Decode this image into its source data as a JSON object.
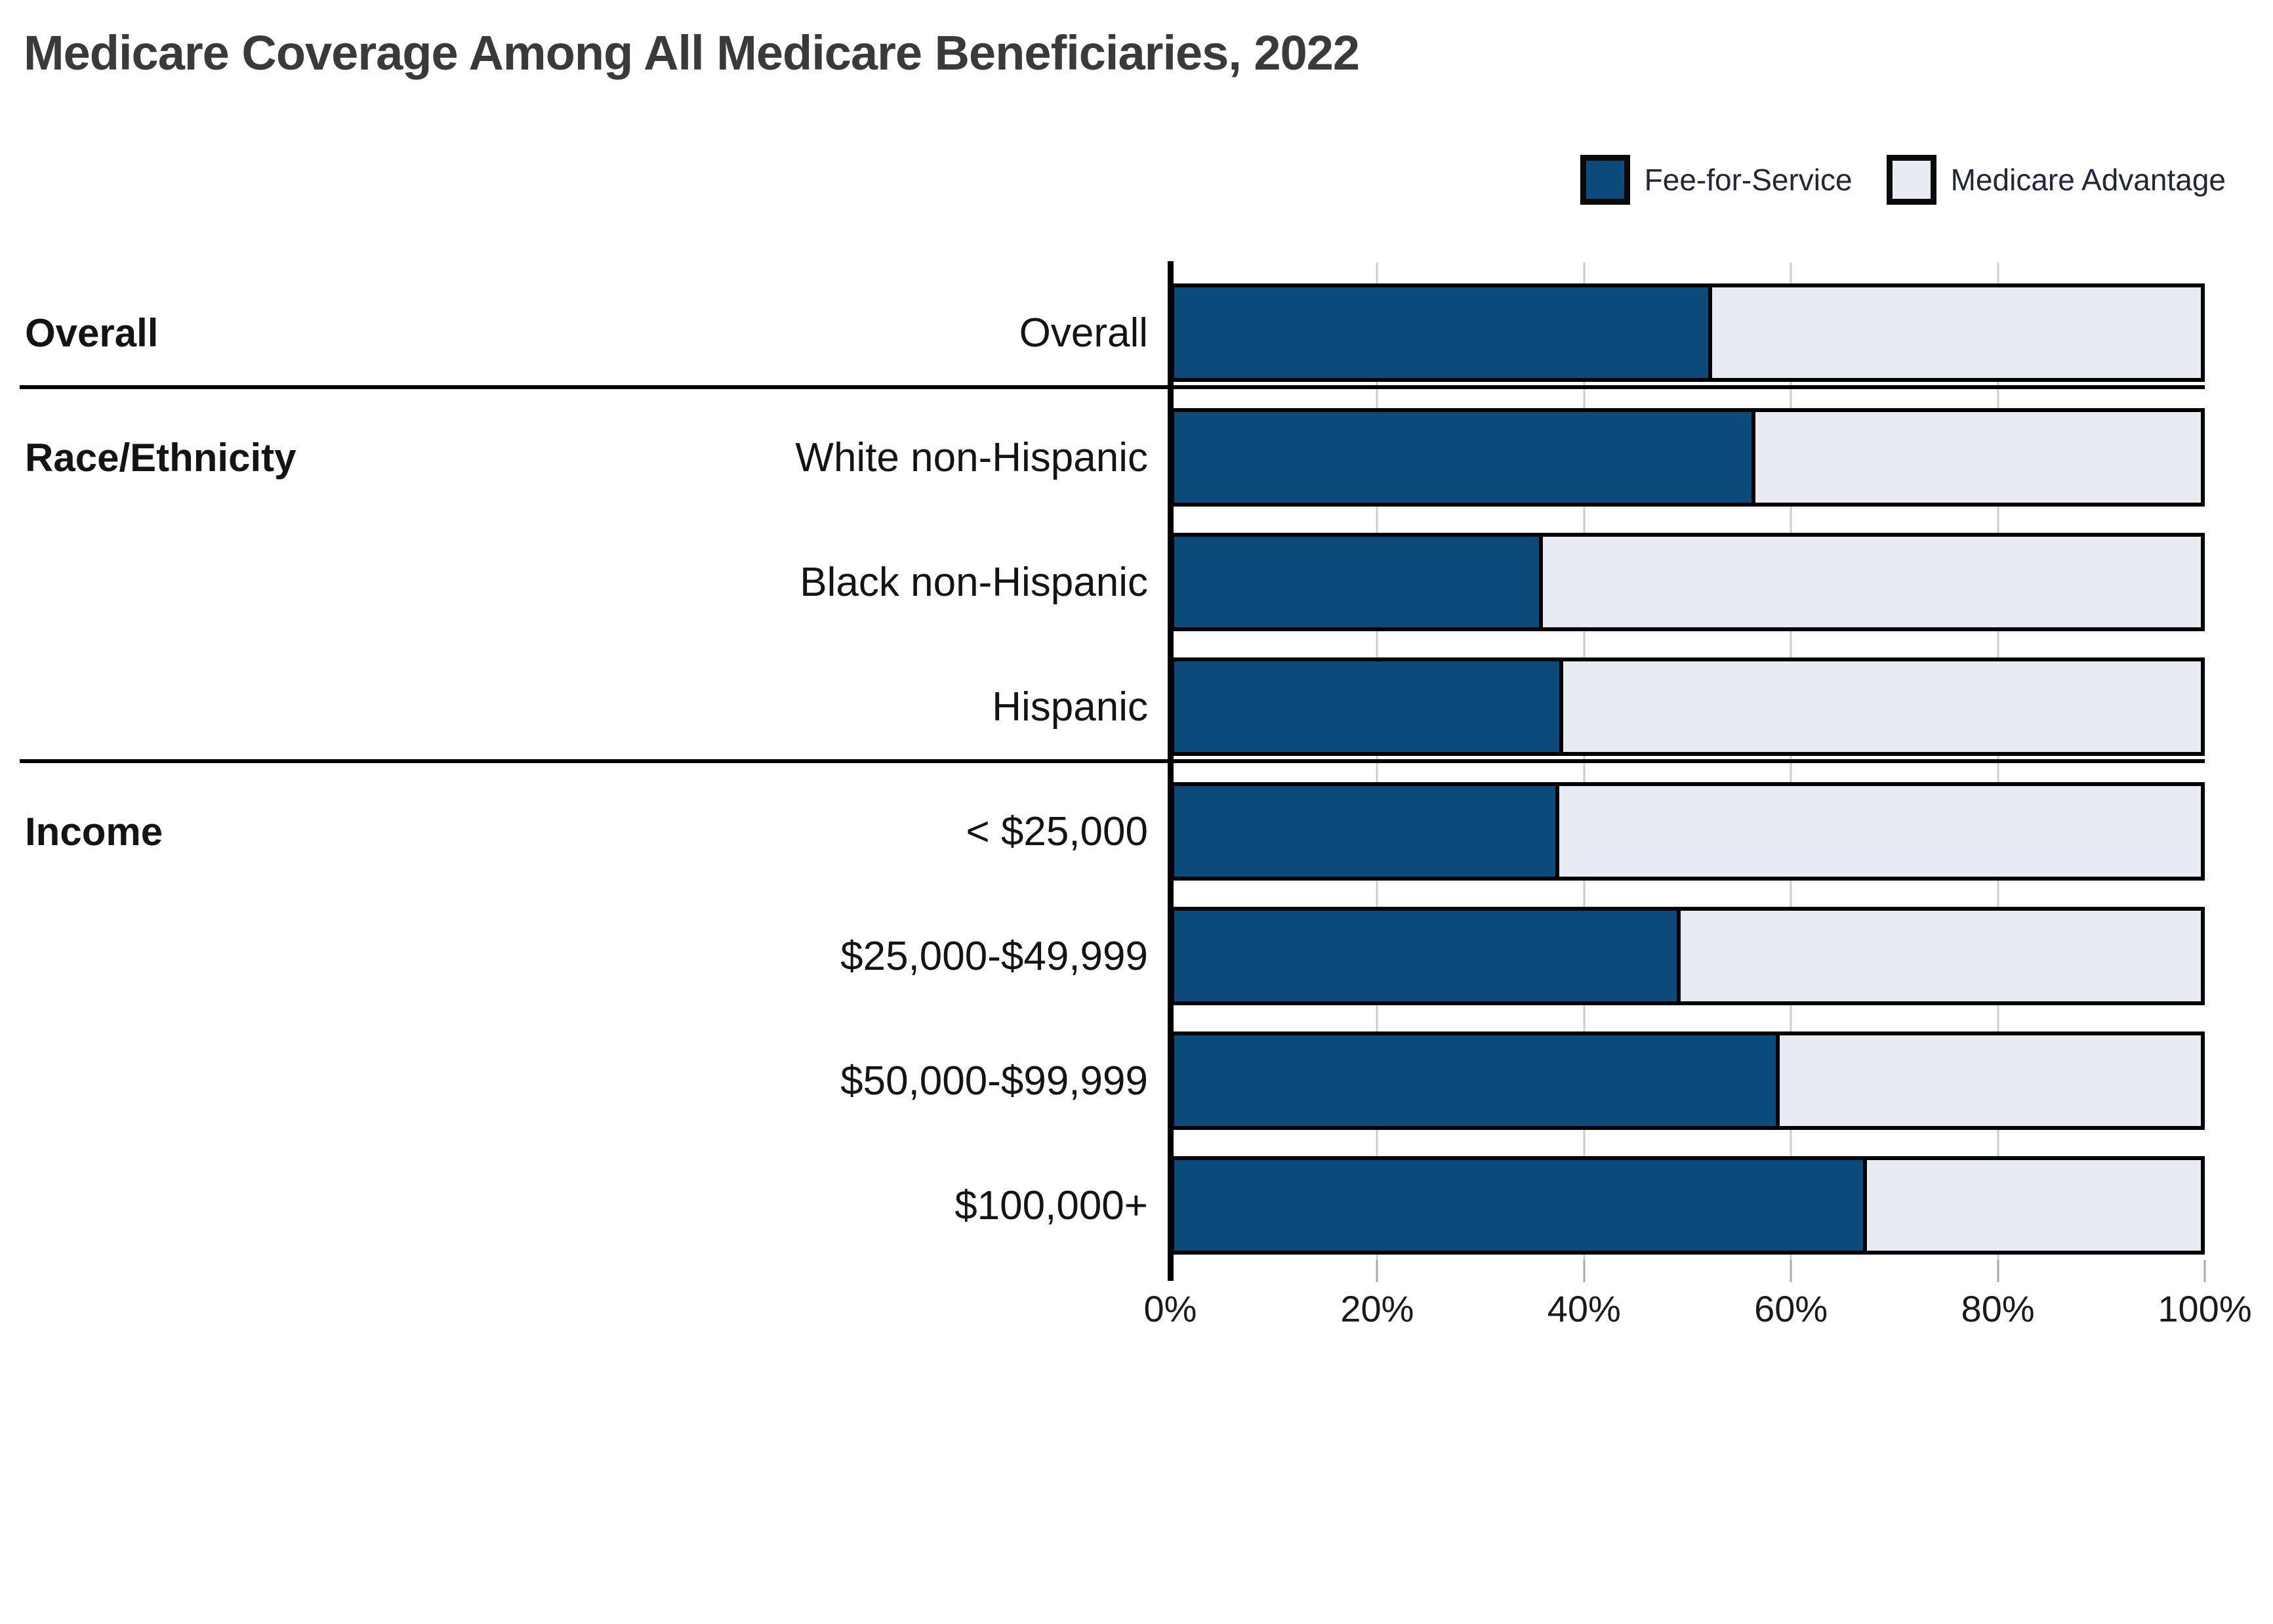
{
  "title": "Medicare Coverage Among All Medicare Beneficiaries, 2022",
  "legend": [
    {
      "label": "Fee-for-Service",
      "color": "#0d4a7c"
    },
    {
      "label": "Medicare Advantage",
      "color": "#e8ebf2"
    }
  ],
  "chart_data": {
    "type": "bar",
    "orientation": "horizontal",
    "stacked": true,
    "title": "Medicare Coverage Among All Medicare Beneficiaries, 2022",
    "categories": [
      "Overall",
      "White non-Hispanic",
      "Black non-Hispanic",
      "Hispanic",
      "< $25,000",
      "$25,000-$49,999",
      "$50,000-$99,999",
      "$100,000+"
    ],
    "series": [
      {
        "name": "Fee-for-Service",
        "color": "#0d4a7c",
        "values": [
          52.4,
          56.6,
          35.9,
          37.9,
          37.5,
          49.3,
          59.0,
          67.5
        ]
      },
      {
        "name": "Medicare Advantage",
        "color": "#e8ebf2",
        "values": [
          47.6,
          43.4,
          64.1,
          62.1,
          62.5,
          50.7,
          41.0,
          32.5
        ]
      }
    ],
    "row_groups": [
      {
        "label": "Overall",
        "start_row": 0,
        "row_count": 1
      },
      {
        "label": "Race/Ethnicity",
        "start_row": 1,
        "row_count": 3
      },
      {
        "label": "Income",
        "start_row": 4,
        "row_count": 4
      }
    ],
    "x_ticks": [
      "0%",
      "20%",
      "40%",
      "60%",
      "80%",
      "100%"
    ],
    "xlim": [
      0,
      100
    ],
    "grid": "vertical gridlines every 20%, visible between bars",
    "legend_position": "top-right",
    "colors": {
      "fee_for_service": "#0d4a7c",
      "medicare_advantage": "#e8ebf2",
      "bar_border": "#000000",
      "gridline": "#cccccc",
      "section_divider": "#000000",
      "title_text": "#3a3a3a",
      "label_text": "#141414"
    }
  }
}
